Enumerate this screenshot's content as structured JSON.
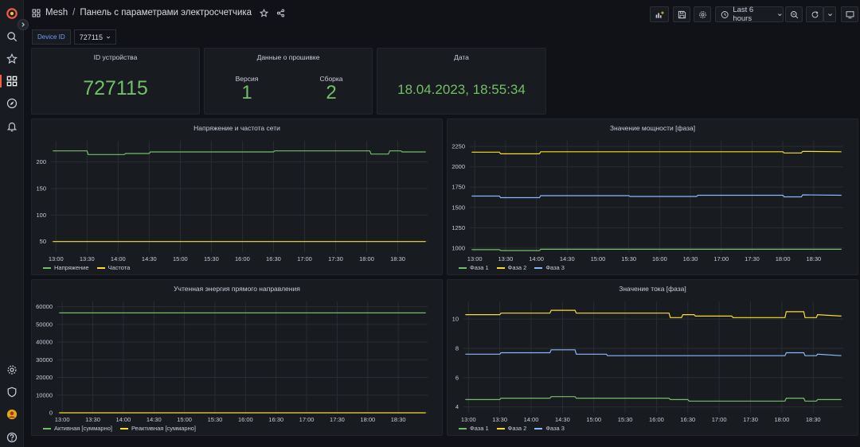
{
  "breadcrumb": {
    "folder": "Mesh",
    "title": "Панель с параметрами электросчетчика"
  },
  "toolbar": {
    "time_range": "Last 6 hours"
  },
  "variable": {
    "label": "Device ID",
    "value": "727115"
  },
  "stats": {
    "device": {
      "title": "ID устройства",
      "value": "727115"
    },
    "firmware": {
      "title": "Данные о прошивке",
      "version_label": "Версия",
      "version": "1",
      "build_label": "Сборка",
      "build": "2"
    },
    "date": {
      "title": "Дата",
      "value": "18.04.2023, 18:55:34"
    }
  },
  "colors": {
    "green": "#73bf69",
    "yellow": "#fade2a",
    "blue": "#8ab8ff",
    "stat": "#73bf69",
    "brand": "#f55f3e"
  },
  "chart_data": [
    {
      "id": "voltage",
      "type": "line",
      "title": "Напряжение и частота сети",
      "x": [
        "13:00",
        "13:30",
        "14:00",
        "14:30",
        "15:00",
        "15:30",
        "16:00",
        "16:30",
        "17:00",
        "17:30",
        "18:00",
        "18:30"
      ],
      "yticks": [
        50,
        100,
        150,
        200
      ],
      "ylim": [
        30,
        240
      ],
      "grid": true,
      "legend_position": "bottom-left",
      "series": [
        {
          "name": "Напряжение",
          "color": "#73bf69",
          "values": [
            [
              12.95,
              221
            ],
            [
              13.5,
              221
            ],
            [
              13.52,
              214
            ],
            [
              14.1,
              214
            ],
            [
              14.12,
              216
            ],
            [
              14.5,
              216
            ],
            [
              14.52,
              219
            ],
            [
              16.5,
              219
            ],
            [
              16.52,
              221
            ],
            [
              18.05,
              221
            ],
            [
              18.07,
              215
            ],
            [
              18.35,
              215
            ],
            [
              18.37,
              221
            ],
            [
              18.55,
              221
            ],
            [
              18.57,
              219
            ],
            [
              18.95,
              219
            ]
          ]
        },
        {
          "name": "Частота",
          "color": "#fade2a",
          "values": [
            [
              12.95,
              50
            ],
            [
              18.95,
              50
            ]
          ]
        }
      ]
    },
    {
      "id": "power",
      "type": "line",
      "title": "Значение мощности [фаза]",
      "x": [
        "13:00",
        "13:30",
        "14:00",
        "14:30",
        "15:00",
        "15:30",
        "16:00",
        "16:30",
        "17:00",
        "17:30",
        "18:00",
        "18:30"
      ],
      "yticks": [
        1000,
        1250,
        1500,
        1750,
        2000,
        2250
      ],
      "ylim": [
        950,
        2320
      ],
      "grid": true,
      "legend_position": "bottom-left",
      "series": [
        {
          "name": "Фаза 1",
          "color": "#73bf69",
          "values": [
            [
              12.95,
              980
            ],
            [
              13.4,
              980
            ],
            [
              13.42,
              970
            ],
            [
              14.05,
              970
            ],
            [
              14.07,
              985
            ],
            [
              18.95,
              985
            ]
          ]
        },
        {
          "name": "Фаза 2",
          "color": "#fade2a",
          "values": [
            [
              12.95,
              2180
            ],
            [
              13.4,
              2180
            ],
            [
              13.42,
              2160
            ],
            [
              14.05,
              2160
            ],
            [
              14.07,
              2185
            ],
            [
              18.0,
              2185
            ],
            [
              18.02,
              2170
            ],
            [
              18.3,
              2170
            ],
            [
              18.32,
              2190
            ],
            [
              18.95,
              2185
            ]
          ]
        },
        {
          "name": "Фаза 3",
          "color": "#8ab8ff",
          "values": [
            [
              12.95,
              1640
            ],
            [
              13.4,
              1640
            ],
            [
              13.42,
              1620
            ],
            [
              14.05,
              1620
            ],
            [
              14.07,
              1645
            ],
            [
              15.5,
              1645
            ],
            [
              15.52,
              1635
            ],
            [
              16.6,
              1635
            ],
            [
              16.62,
              1650
            ],
            [
              18.0,
              1650
            ],
            [
              18.02,
              1630
            ],
            [
              18.3,
              1630
            ],
            [
              18.32,
              1655
            ],
            [
              18.95,
              1650
            ]
          ]
        }
      ]
    },
    {
      "id": "energy",
      "type": "line",
      "title": "Учтенная энергия прямого направления",
      "x": [
        "13:00",
        "13:30",
        "14:00",
        "14:30",
        "15:00",
        "15:30",
        "16:00",
        "16:30",
        "17:00",
        "17:30",
        "18:00",
        "18:30"
      ],
      "yticks": [
        0,
        10000,
        20000,
        30000,
        40000,
        50000,
        60000
      ],
      "ylim": [
        0,
        63000
      ],
      "grid": true,
      "legend_position": "bottom-left",
      "series": [
        {
          "name": "Активная [суммарно]",
          "color": "#73bf69",
          "values": [
            [
              12.95,
              56500
            ],
            [
              18.95,
              56500
            ]
          ]
        },
        {
          "name": "Реактивная [суммарно]",
          "color": "#fade2a",
          "values": [
            [
              12.95,
              0
            ],
            [
              18.95,
              0
            ]
          ]
        }
      ]
    },
    {
      "id": "current",
      "type": "line",
      "title": "Значение тока [фаза]",
      "x": [
        "13:00",
        "13:30",
        "14:00",
        "14:30",
        "15:00",
        "15:30",
        "16:00",
        "16:30",
        "17:00",
        "17:30",
        "18:00",
        "18:30"
      ],
      "yticks": [
        4,
        6,
        8,
        10
      ],
      "ylim": [
        3.6,
        11.2
      ],
      "grid": true,
      "legend_position": "bottom-left",
      "series": [
        {
          "name": "Фаза 1",
          "color": "#73bf69",
          "values": [
            [
              12.95,
              4.5
            ],
            [
              13.5,
              4.5
            ],
            [
              13.52,
              4.6
            ],
            [
              14.3,
              4.6
            ],
            [
              14.32,
              4.7
            ],
            [
              14.7,
              4.7
            ],
            [
              14.72,
              4.6
            ],
            [
              16.2,
              4.6
            ],
            [
              16.22,
              4.5
            ],
            [
              16.5,
              4.5
            ],
            [
              16.52,
              4.4
            ],
            [
              18.05,
              4.4
            ],
            [
              18.07,
              4.6
            ],
            [
              18.35,
              4.6
            ],
            [
              18.37,
              4.4
            ],
            [
              18.55,
              4.4
            ],
            [
              18.57,
              4.5
            ],
            [
              18.95,
              4.5
            ]
          ]
        },
        {
          "name": "Фаза 2",
          "color": "#fade2a",
          "values": [
            [
              12.95,
              10.3
            ],
            [
              13.5,
              10.3
            ],
            [
              13.52,
              10.4
            ],
            [
              14.3,
              10.4
            ],
            [
              14.32,
              10.6
            ],
            [
              14.7,
              10.6
            ],
            [
              14.72,
              10.4
            ],
            [
              16.2,
              10.4
            ],
            [
              16.22,
              10.1
            ],
            [
              16.4,
              10.1
            ],
            [
              16.42,
              10.3
            ],
            [
              16.6,
              10.3
            ],
            [
              16.62,
              10.2
            ],
            [
              17.2,
              10.2
            ],
            [
              17.22,
              10.1
            ],
            [
              18.05,
              10.1
            ],
            [
              18.07,
              10.5
            ],
            [
              18.35,
              10.5
            ],
            [
              18.37,
              10.1
            ],
            [
              18.55,
              10.1
            ],
            [
              18.57,
              10.3
            ],
            [
              18.95,
              10.2
            ]
          ]
        },
        {
          "name": "Фаза 3",
          "color": "#8ab8ff",
          "values": [
            [
              12.95,
              7.6
            ],
            [
              13.5,
              7.6
            ],
            [
              13.52,
              7.7
            ],
            [
              14.3,
              7.7
            ],
            [
              14.32,
              7.9
            ],
            [
              14.7,
              7.9
            ],
            [
              14.72,
              7.6
            ],
            [
              15.2,
              7.6
            ],
            [
              15.22,
              7.5
            ],
            [
              18.05,
              7.5
            ],
            [
              18.07,
              7.7
            ],
            [
              18.35,
              7.7
            ],
            [
              18.37,
              7.5
            ],
            [
              18.55,
              7.5
            ],
            [
              18.57,
              7.6
            ],
            [
              18.95,
              7.5
            ]
          ]
        }
      ]
    }
  ]
}
